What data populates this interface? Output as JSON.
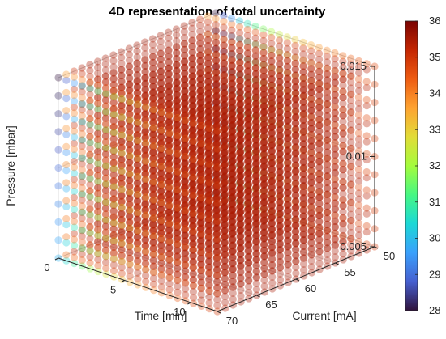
{
  "chart_data": {
    "type": "scatter",
    "title": "4D representation of total uncertainty",
    "x_axis": {
      "label": "Time [min]",
      "ticks": [
        0,
        5,
        10
      ],
      "range": [
        0,
        12
      ]
    },
    "y_axis": {
      "label": "Current [mA]",
      "ticks": [
        50,
        55,
        60,
        65,
        70
      ],
      "range": [
        50,
        70
      ]
    },
    "z_axis": {
      "label": "Pressure [mbar]",
      "ticks": [
        "0.005",
        "0.01",
        "0.015"
      ],
      "range": [
        0.005,
        0.015
      ]
    },
    "colorbar": {
      "range": [
        28,
        36
      ],
      "ticks": [
        28,
        29,
        30,
        31,
        32,
        33,
        34,
        35,
        36
      ],
      "colormap": "turbo"
    },
    "pressure_levels": [
      0.005,
      0.006,
      0.007,
      0.008,
      0.009,
      0.01,
      0.011,
      0.012,
      0.013,
      0.014,
      0.015
    ],
    "current_grid": {
      "from": 50,
      "to": 70,
      "points": 21
    },
    "time_grid": {
      "from": 0,
      "to": 12,
      "points": 21
    },
    "uncertainty_description": {
      "plateau_value": 35.5,
      "minimum_value": 28,
      "low_values_at": "Current = 70 mA (front edge) and Current = 50 mA (back edge), near Time = 0"
    },
    "grid": true,
    "view": "3D perspective",
    "marker_alpha": 0.35
  }
}
